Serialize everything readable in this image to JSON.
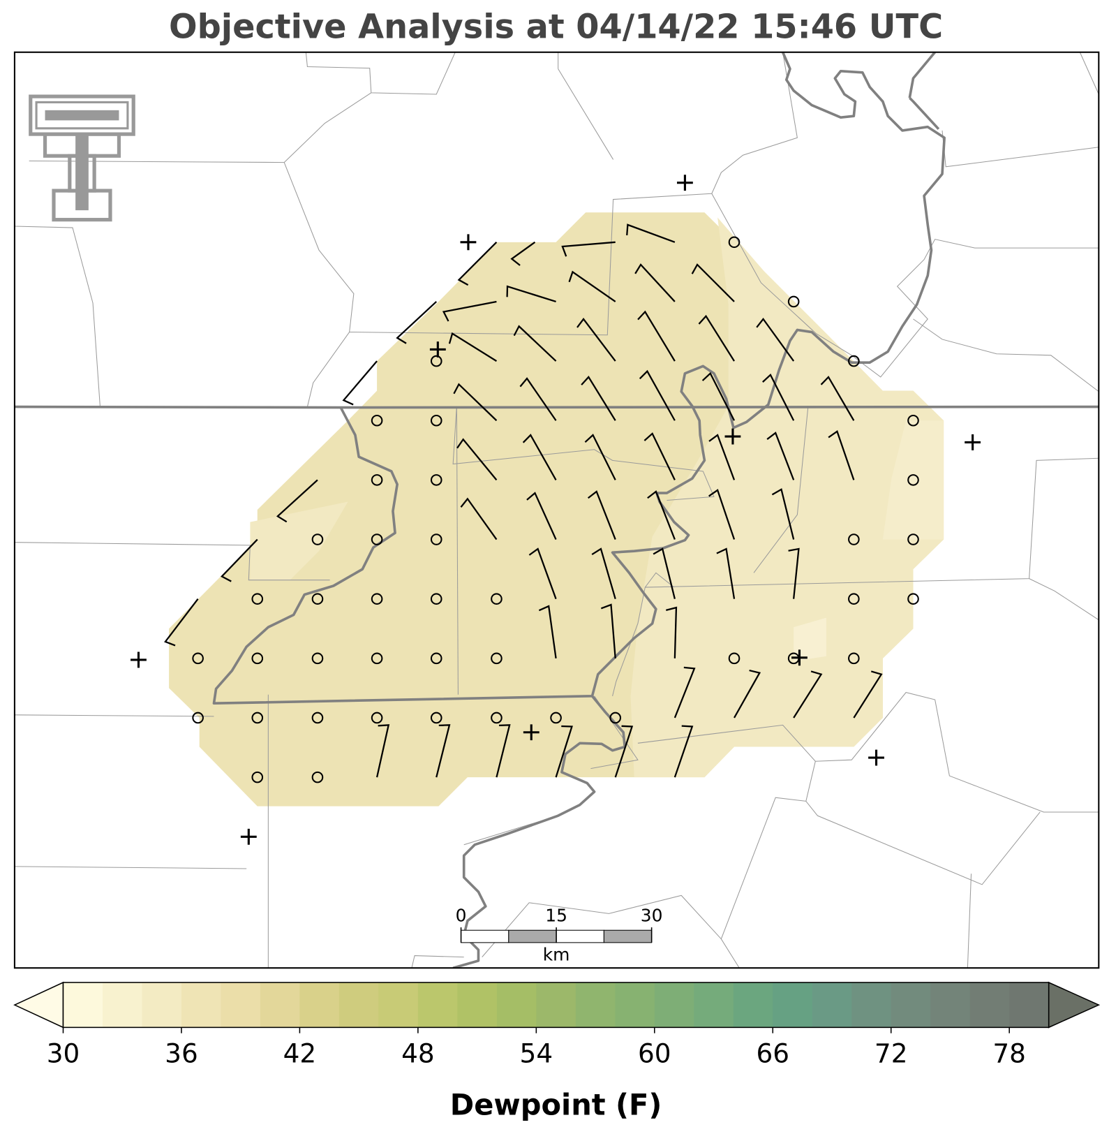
{
  "title": "Objective Analysis at 04/14/22 15:46 UTC",
  "colorbar": {
    "label": "Dewpoint (F)",
    "lim": [
      30,
      80
    ],
    "ticks": [
      30,
      36,
      42,
      48,
      54,
      60,
      66,
      72,
      78
    ],
    "colors": [
      "#fdf9dc",
      "#f8f2cf",
      "#f3ebc3",
      "#efe4b5",
      "#ebdea9",
      "#e3d79a",
      "#d9d18a",
      "#cfcc7e",
      "#c8cb76",
      "#bbc76c",
      "#b0c266",
      "#a5be66",
      "#9cb86a",
      "#90b56e",
      "#87b271",
      "#7eae76",
      "#75ab7b",
      "#6ba67f",
      "#66a183",
      "#6a9a85",
      "#6f9281",
      "#728b7d",
      "#738479",
      "#727d74",
      "#6f7770"
    ],
    "under_color": "#fffbe6",
    "over_color": "#6a7066"
  },
  "scale_bar": {
    "lim": [
      0,
      30
    ],
    "ticks": [
      0,
      15,
      30
    ],
    "label": "km"
  }
}
